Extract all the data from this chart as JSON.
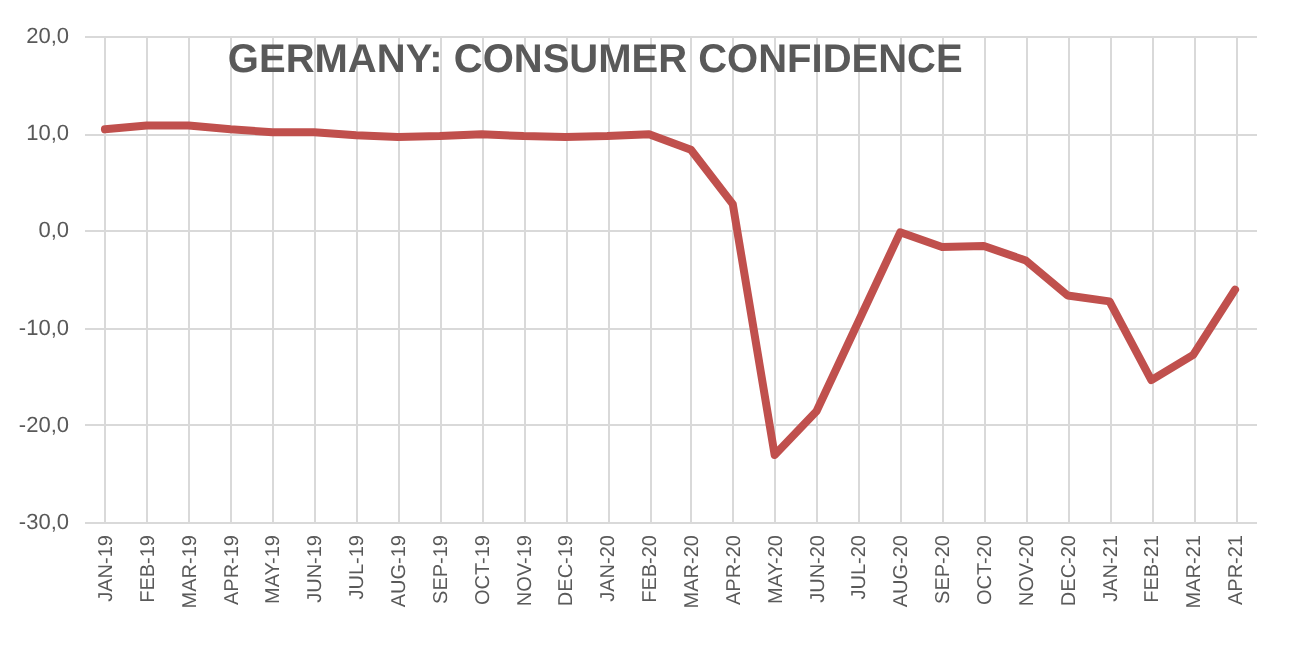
{
  "chart_data": {
    "type": "line",
    "title": "GERMANY: CONSUMER CONFIDENCE",
    "categories": [
      "JAN-19",
      "FEB-19",
      "MAR-19",
      "APR-19",
      "MAY-19",
      "JUN-19",
      "JUL-19",
      "AUG-19",
      "SEP-19",
      "OCT-19",
      "NOV-19",
      "DEC-19",
      "JAN-20",
      "FEB-20",
      "MAR-20",
      "APR-20",
      "MAY-20",
      "JUN-20",
      "JUL-20",
      "AUG-20",
      "SEP-20",
      "OCT-20",
      "NOV-20",
      "DEC-20",
      "JAN-21",
      "FEB-21",
      "MAR-21",
      "APR-21"
    ],
    "series": [
      {
        "color": "#c0504d",
        "values": [
          10.4,
          10.8,
          10.8,
          10.4,
          10.1,
          10.1,
          9.8,
          9.6,
          9.7,
          9.9,
          9.7,
          9.6,
          9.7,
          9.9,
          8.3,
          2.7,
          -23.1,
          -18.6,
          -9.4,
          -0.2,
          -1.7,
          -1.6,
          -3.1,
          -6.7,
          -7.3,
          -15.4,
          -12.8,
          -6.1
        ]
      }
    ],
    "ylim": [
      -30,
      20
    ],
    "yticks": [
      {
        "value": -30,
        "label": "-30,0"
      },
      {
        "value": -20,
        "label": "-20,0"
      },
      {
        "value": -10,
        "label": "-10,0"
      },
      {
        "value": 0,
        "label": "0,0"
      },
      {
        "value": 10,
        "label": "10,0"
      },
      {
        "value": 20,
        "label": "20,0"
      }
    ],
    "grid": true,
    "legend": false,
    "marker": "none",
    "line_style": "solid"
  }
}
